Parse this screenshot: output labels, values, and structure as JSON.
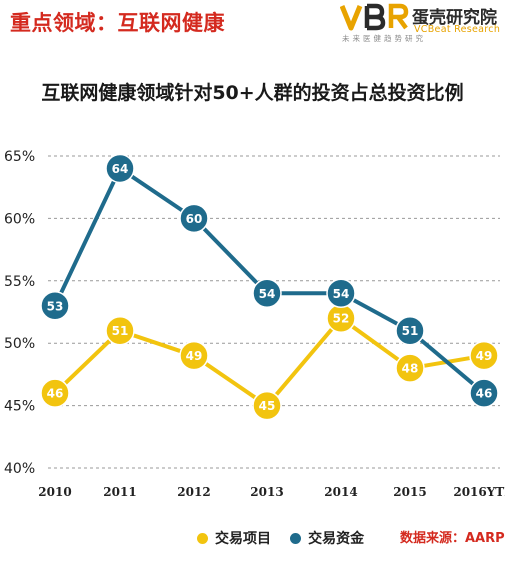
{
  "header": {
    "title": "重点领域：互联网健康",
    "logo_name": "蛋壳研究院",
    "logo_en": "VCBeat Research",
    "logo_tagline": "未来医健趋势研究"
  },
  "colors": {
    "header_red": "#d42a1f",
    "series_deals": "#f2c40f",
    "series_funding": "#1f6b8c",
    "gridline": "#999999"
  },
  "chart_data": {
    "type": "line",
    "title": "互联网健康领域针对50+人群的投资占总投资比例",
    "categories": [
      "2010",
      "2011",
      "2012",
      "2013",
      "2014",
      "2015",
      "2016YTD"
    ],
    "yticks": [
      "40%",
      "45%",
      "50%",
      "55%",
      "60%",
      "65%"
    ],
    "ylim": [
      40,
      65
    ],
    "grid": true,
    "legend_position": "bottom",
    "series": [
      {
        "name": "交易项目",
        "values": [
          46,
          51,
          49,
          45,
          52,
          48,
          49
        ],
        "labels": [
          "46",
          "51",
          "49",
          "45",
          "52",
          "48",
          "49"
        ]
      },
      {
        "name": "交易资金",
        "values": [
          53,
          64,
          60,
          54,
          54,
          51,
          46
        ],
        "labels": [
          "53",
          "64",
          "60",
          "54",
          "54",
          "51",
          "46"
        ]
      }
    ]
  },
  "source": "数据来源：AARP"
}
